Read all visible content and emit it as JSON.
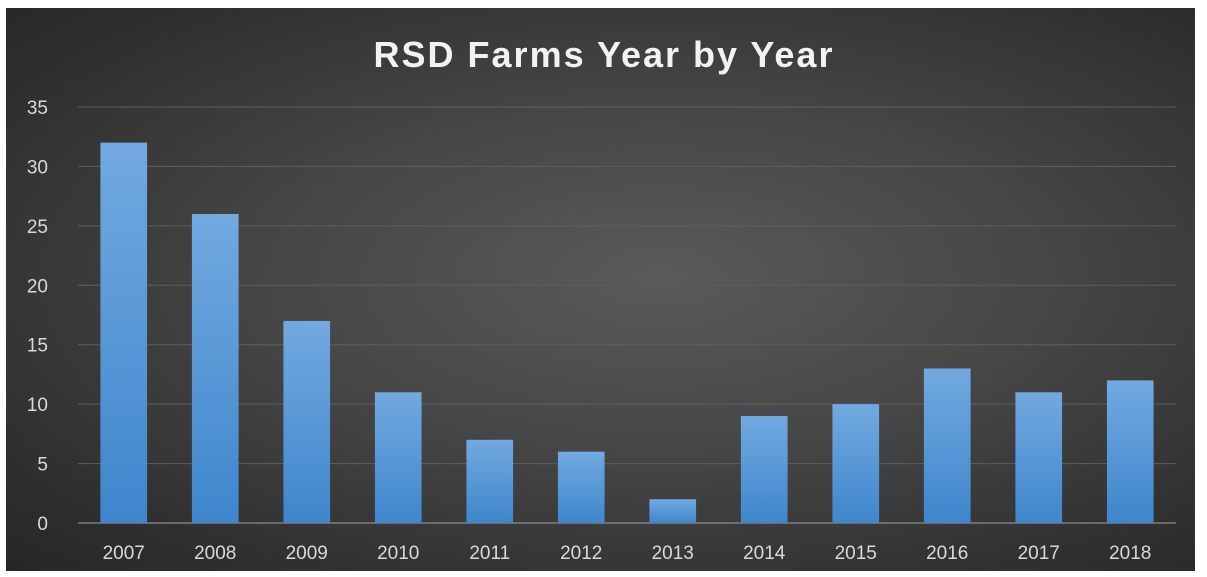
{
  "chart_data": {
    "type": "bar",
    "title": "RSD Farms Year by Year",
    "xlabel": "",
    "ylabel": "",
    "categories": [
      "2007",
      "2008",
      "2009",
      "2010",
      "2011",
      "2012",
      "2013",
      "2014",
      "2015",
      "2016",
      "2017",
      "2018"
    ],
    "values": [
      32,
      26,
      17,
      11,
      7,
      6,
      2,
      9,
      10,
      13,
      11,
      12
    ],
    "ylim": [
      0,
      35
    ],
    "yticks": [
      "0",
      "5",
      "10",
      "15",
      "20",
      "25",
      "30",
      "35"
    ],
    "grid": true,
    "legend": "none",
    "colors": {
      "bar": "#5b9bd5",
      "background": "#404040"
    }
  }
}
